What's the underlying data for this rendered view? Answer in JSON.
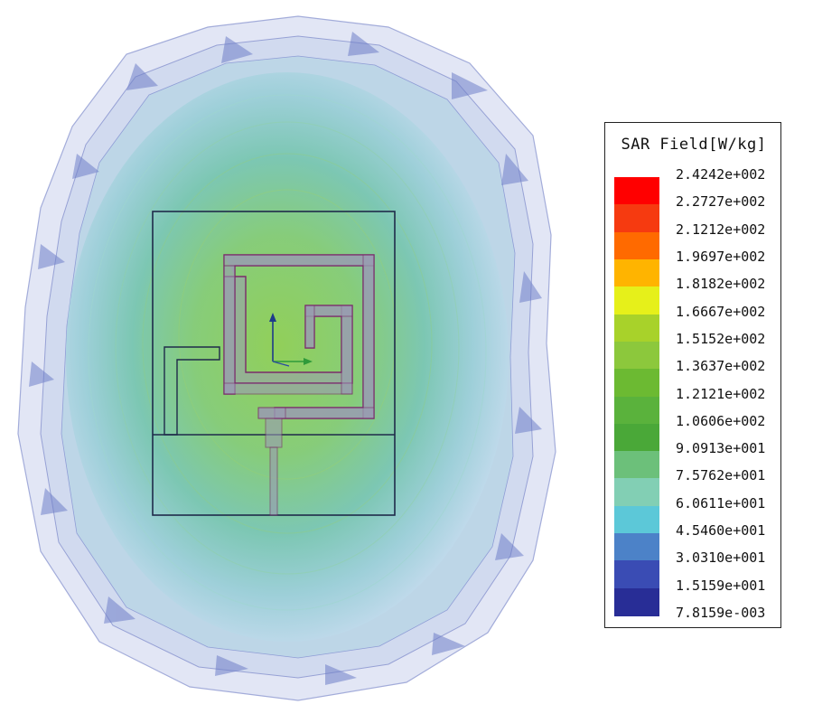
{
  "legend": {
    "title": "SAR Field[W/kg]",
    "ticks": [
      "2.4242e+002",
      "2.2727e+002",
      "2.1212e+002",
      "1.9697e+002",
      "1.8182e+002",
      "1.6667e+002",
      "1.5152e+002",
      "1.3637e+002",
      "1.2121e+002",
      "1.0606e+002",
      "9.0913e+001",
      "7.5762e+001",
      "6.0611e+001",
      "4.5460e+001",
      "3.0310e+001",
      "1.5159e+001",
      "7.8159e-003"
    ],
    "colors": [
      "#ff0000",
      "#f63a10",
      "#ff6a00",
      "#ffb400",
      "#e6f01a",
      "#a8d22a",
      "#8cc83c",
      "#6cba32",
      "#5ab23c",
      "#4aa838",
      "#6cc07a",
      "#82cfb4",
      "#5cc8d8",
      "#4c82c8",
      "#3a4cb4",
      "#282d96"
    ]
  },
  "colors": {
    "field_center": "#8ccf5a",
    "field_mid": "#79c6b4",
    "field_outer": "#b4d9e6",
    "shell": "#c8d0ee",
    "outline": "#1f2a4a",
    "trace": "#8a8aa8",
    "trace_edge": "#7a2a6a",
    "axis_green": "#2f9a3a",
    "axis_blue": "#1e3a8a"
  }
}
